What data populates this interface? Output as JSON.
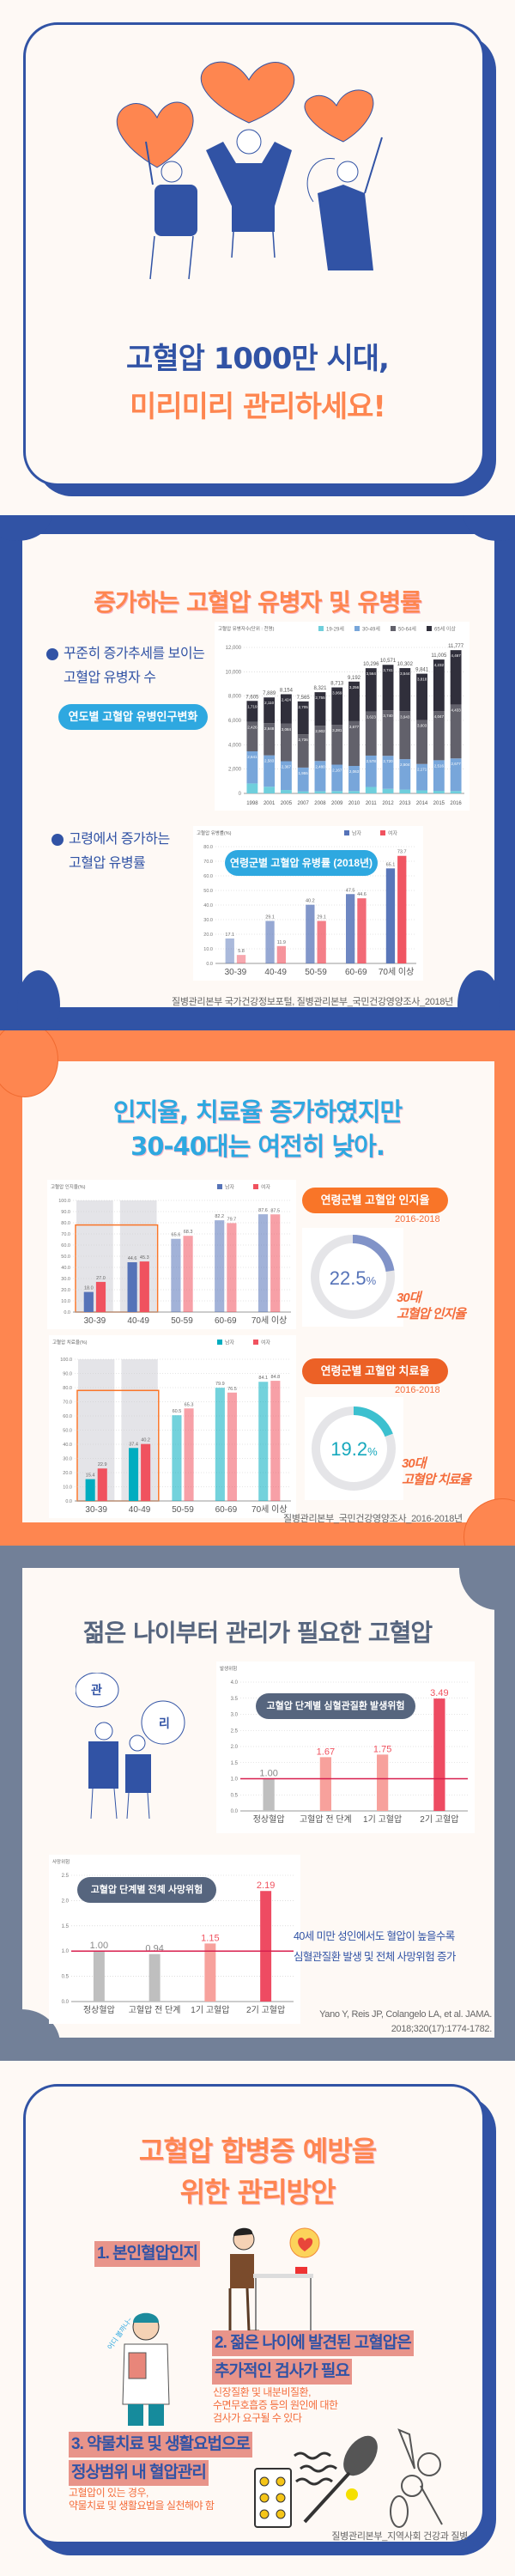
{
  "hero": {
    "title_line1": "고혈압 1000만 시대,",
    "title_line2": "미리미리 관리하세요!"
  },
  "prevalence": {
    "title": "증가하는 고혈압 유병자 및 유병률",
    "bullet1_line1": "꾸준히 증가추세를 보이는",
    "bullet1_line2": "고혈압 유병자 수",
    "bubble1": "연도별 고혈압 유병인구변화",
    "bullet2_line1": "고령에서 증가하는",
    "bullet2_line2": "고혈압 유병률",
    "bubble2": "연령군별 고혈압 유병률 (2018년)",
    "source": "질병관리본부 국가건강정보포털, 질병관리본부_국민건강영양조사_2018년"
  },
  "awareness": {
    "title_line1": "인지율, 치료율 증가하였지만",
    "title_line2": "30-40대는 여전히 낮아.",
    "callout1": "연령군별 고혈압 인지율",
    "callout1_date": "2016-2018",
    "donut1_value": "22.5",
    "donut1_pct": 22.5,
    "donut1_label1": "30대",
    "donut1_label2": "고혈압 인지율",
    "callout2": "연령군별 고혈압 치료율",
    "callout2_date": "2016-2018",
    "donut2_value": "19.2",
    "donut2_pct": 19.2,
    "donut2_label1": "30대",
    "donut2_label2": "고혈압 치료율",
    "percent_sign": "%",
    "source": "질병관리본부_국민건강영양조사_2016-2018년"
  },
  "young": {
    "title": "젊은 나이부터 관리가 필요한 고혈압",
    "cloud1": "관",
    "cloud2": "리",
    "bubble1": "고혈압 단계별 심혈관질환 발생위험",
    "bubble2": "고혈압 단계별 전체 사망위험",
    "note_line1": "40세 미만 성인에서도 혈압이 높을수록",
    "note_line2": "심혈관질환 발생  및 전체 사망위험 증가",
    "ref_line1": "Yano Y, Reis JP, Colangelo LA, et al.  JAMA.",
    "ref_line2": "2018;320(17):1774-1782."
  },
  "management": {
    "title_line1": "고혈압 합병증 예방을",
    "title_line2": "위한 관리방안",
    "item1": "1. 본인혈압인지",
    "item2_line1": "2. 젊은 나이에 발견된 고혈압은",
    "item2_line2": "추가적인 검사가 필요",
    "item2_desc": [
      "신장질환 및 내분비질환,",
      "수면무호흡증 등의 원인에 대한",
      "검사가 요구될 수 있다"
    ],
    "doctor_speech": "어디 볼까나~",
    "item3_line1": "3. 약물치료 및 생활요법으로",
    "item3_line2": "정상범위 내 혈압관리",
    "item3_desc": [
      "고혈압이 있는 경우,",
      "약물치료 및 생활요법을 실천해야 함"
    ],
    "source": "질병관리본부_지역사회 건강과 질병"
  },
  "colors": {
    "blue": "#3153a5",
    "orange": "#fe8650",
    "sky": "#2ea8e0",
    "slate": "#728098",
    "cream": "#fef9f5"
  },
  "chart_data": [
    {
      "id": "c1",
      "type": "bar",
      "stacked": true,
      "title": "고혈압 유병자수(단위 : 천명)",
      "categories": [
        "1998",
        "2001",
        "2005",
        "2007",
        "2008",
        "2009",
        "2010",
        "2011",
        "2012",
        "2013",
        "2014",
        "2015",
        "2016"
      ],
      "series": [
        {
          "name": "19-29세",
          "color": "#6fcfdc",
          "values": [
            819,
            548,
            279,
            169,
            184,
            196,
            196,
            531,
            370,
            311,
            249,
            210,
            200
          ]
        },
        {
          "name": "30-49세",
          "color": "#78a6da",
          "values": [
            2641,
            2583,
            2367,
            1955,
            2480,
            2167,
            2063,
            2578,
            2720,
            2504,
            2171,
            2516,
            2677
          ]
        },
        {
          "name": "50-64세",
          "color": "#62616b",
          "values": [
            2426,
            2648,
            3084,
            2736,
            2902,
            3281,
            3677,
            3623,
            3740,
            3943,
            3603,
            4047,
            4433
          ]
        },
        {
          "name": "65세 이상",
          "color": "#302f3b",
          "values": [
            1719,
            2110,
            2424,
            2705,
            2755,
            3069,
            3256,
            3564,
            3741,
            3544,
            3818,
            4232,
            4467
          ]
        }
      ],
      "totals": [
        7605,
        7889,
        8154,
        7565,
        8321,
        8713,
        9192,
        10296,
        10571,
        10302,
        9841,
        11005,
        11777
      ],
      "ylim": [
        0,
        12000
      ],
      "yticks": [
        0,
        2000,
        4000,
        6000,
        8000,
        10000,
        12000
      ],
      "tick_fmt": "comma"
    },
    {
      "id": "c2",
      "type": "bar",
      "title": "고혈압 유병률(%)",
      "categories": [
        "30-39",
        "40-49",
        "50-59",
        "60-69",
        "70세 이상"
      ],
      "series": [
        {
          "name": "남자",
          "color": "#5673b8",
          "values": [
            17.1,
            29.1,
            40.2,
            47.5,
            65.1
          ]
        },
        {
          "name": "여자",
          "color": "#f0525f",
          "values": [
            5.8,
            11.9,
            29.1,
            44.6,
            73.7
          ]
        }
      ],
      "ylim": [
        0,
        80
      ],
      "yticks": [
        0,
        10,
        20,
        30,
        40,
        50,
        60,
        70,
        80
      ],
      "tick_fmt": "1"
    },
    {
      "id": "c3",
      "type": "bar",
      "title": "고혈압 인지율(%)",
      "categories": [
        "30-39",
        "40-49",
        "50-59",
        "60-69",
        "70세 이상"
      ],
      "series": [
        {
          "name": "남자",
          "color": "#5673b8",
          "values": [
            18.0,
            44.6,
            65.6,
            82.2,
            87.6
          ]
        },
        {
          "name": "여자",
          "color": "#f0525f",
          "values": [
            27.0,
            45.3,
            68.3,
            79.7,
            87.5
          ]
        }
      ],
      "highlight": [
        0,
        1
      ],
      "ylim": [
        0,
        100
      ],
      "yticks": [
        0,
        10,
        20,
        30,
        40,
        50,
        60,
        70,
        80,
        90,
        100
      ],
      "tick_fmt": "1"
    },
    {
      "id": "c4",
      "type": "bar",
      "title": "고혈압 치료율(%)",
      "categories": [
        "30-39",
        "40-49",
        "50-59",
        "60-69",
        "70세 이상"
      ],
      "series": [
        {
          "name": "남자",
          "color": "#00adc0",
          "values": [
            15.4,
            37.4,
            60.5,
            79.9,
            84.1
          ]
        },
        {
          "name": "여자",
          "color": "#f0525f",
          "values": [
            22.9,
            40.2,
            65.3,
            76.5,
            84.8
          ]
        }
      ],
      "highlight": [
        0,
        1
      ],
      "ylim": [
        0,
        100
      ],
      "yticks": [
        0,
        10,
        20,
        30,
        40,
        50,
        60,
        70,
        80,
        90,
        100
      ],
      "tick_fmt": "1"
    },
    {
      "id": "c5",
      "type": "bar",
      "title": "발생위험",
      "categories": [
        "정상혈압",
        "고혈압 전 단계",
        "1기 고혈압",
        "2기 고혈압"
      ],
      "series": [
        {
          "name": "발생위험",
          "colors": [
            "#bfbfbf",
            "#f7a19c",
            "#f7a19c",
            "#ee4b62"
          ],
          "values": [
            1.0,
            1.67,
            1.75,
            3.49
          ]
        }
      ],
      "reference_line": 1.0,
      "ylim": [
        0,
        4
      ],
      "yticks": [
        0,
        0.5,
        1.0,
        1.5,
        2.0,
        2.5,
        3.0,
        3.5,
        4.0
      ],
      "tick_fmt": "1"
    },
    {
      "id": "c6",
      "type": "bar",
      "title": "사망위험",
      "categories": [
        "정상혈압",
        "고혈압 전 단계",
        "1기 고혈압",
        "2기 고혈압"
      ],
      "series": [
        {
          "name": "사망위험",
          "colors": [
            "#bfbfbf",
            "#bfbfbf",
            "#f7a19c",
            "#ee4b62"
          ],
          "values": [
            1.0,
            0.94,
            1.15,
            2.19
          ]
        }
      ],
      "reference_line": 1.0,
      "ylim": [
        0,
        2.5
      ],
      "yticks": [
        0,
        0.5,
        1.0,
        1.5,
        2.0,
        2.5
      ],
      "tick_fmt": "1"
    }
  ]
}
